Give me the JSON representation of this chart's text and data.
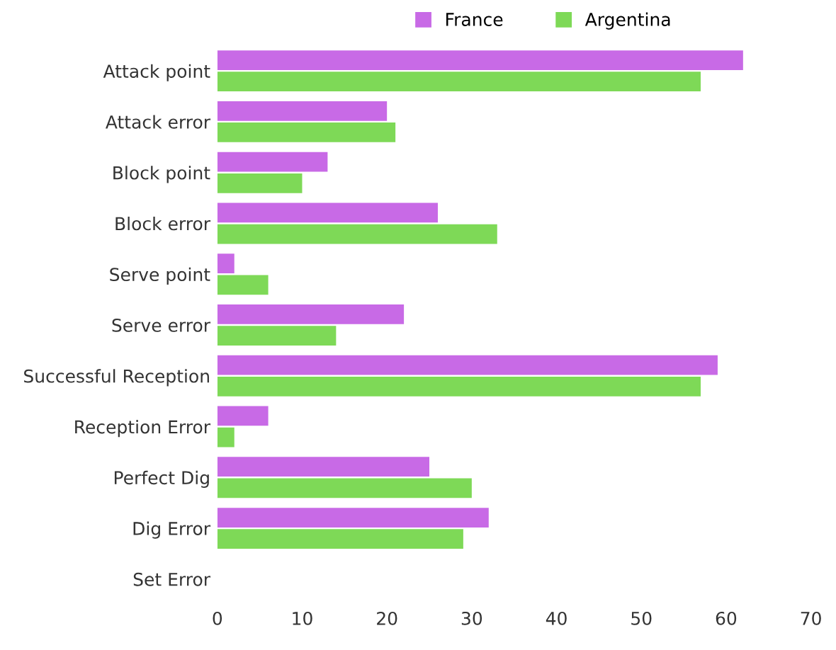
{
  "chart_data": {
    "type": "bar",
    "orientation": "horizontal",
    "categories": [
      "Attack point",
      "Attack error",
      "Block point",
      "Block error",
      "Serve point",
      "Serve error",
      "Successful Reception",
      "Reception Error",
      "Perfect Dig",
      "Dig Error",
      "Set Error"
    ],
    "series": [
      {
        "name": "France",
        "color": "#c86ae6",
        "values": [
          62,
          20,
          13,
          26,
          2,
          22,
          59,
          6,
          25,
          32,
          0
        ]
      },
      {
        "name": "Argentina",
        "color": "#7ed957",
        "values": [
          57,
          21,
          10,
          33,
          6,
          14,
          57,
          2,
          30,
          29,
          0
        ]
      }
    ],
    "xlim": [
      0,
      70
    ],
    "xticks": [
      0,
      10,
      20,
      30,
      40,
      50,
      60,
      70
    ],
    "grid": false,
    "legend": "top"
  }
}
